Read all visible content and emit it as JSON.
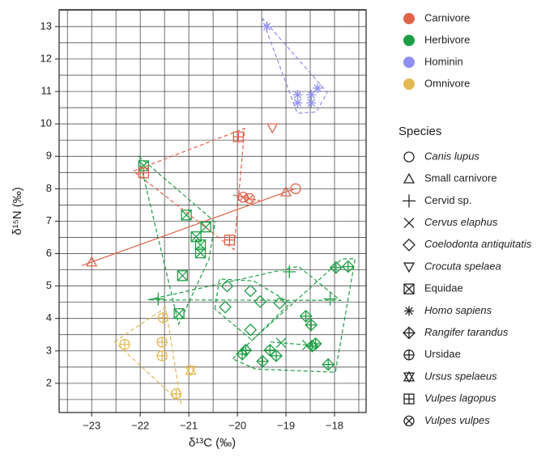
{
  "chart_data": {
    "type": "scatter",
    "x_label": "δ¹³C (‰)",
    "y_label": "δ¹⁵N (‰)",
    "xlim": [
      -23.67,
      -17.35
    ],
    "ylim": [
      1.1,
      13.52
    ],
    "xticks": [
      {
        "value": -23,
        "label": "−23"
      },
      {
        "value": -22,
        "label": "−22"
      },
      {
        "value": -21,
        "label": "−21"
      },
      {
        "value": -20,
        "label": "−20"
      },
      {
        "value": -19,
        "label": "−19"
      },
      {
        "value": -18,
        "label": "−18"
      }
    ],
    "yticks": [
      2,
      3,
      4,
      5,
      6,
      7,
      8,
      9,
      10,
      11,
      12,
      13
    ],
    "xgrid": [
      -23.5,
      -23,
      -22.5,
      -22,
      -21.5,
      -21,
      -20.5,
      -20,
      -19.5,
      -19,
      -18.5,
      -18,
      -17.5
    ],
    "ygrid": [
      1.5,
      2,
      2.5,
      3,
      3.5,
      4,
      4.5,
      5,
      5.5,
      6,
      6.5,
      7,
      7.5,
      8,
      8.5,
      9,
      9.5,
      10,
      10.5,
      11,
      11.5,
      12,
      12.5,
      13,
      13.5
    ],
    "diets": [
      {
        "name": "Carnivore",
        "color": "#e0634a"
      },
      {
        "name": "Herbivore",
        "color": "#1e9e44"
      },
      {
        "name": "Hominin",
        "color": "#8f8ff0"
      },
      {
        "name": "Omnivore",
        "color": "#e3b954"
      }
    ],
    "species_title": "Species",
    "series": [
      {
        "name": "Canis lupus",
        "italic": true,
        "marker": "circle",
        "diet": 0,
        "x": [
          -18.8
        ],
        "y": [
          8.0
        ]
      },
      {
        "name": "Small carnivore",
        "italic": false,
        "marker": "triangle",
        "diet": 0,
        "x": [
          -23.0,
          -19.0
        ],
        "y": [
          5.74,
          7.9
        ]
      },
      {
        "name": "Cervid sp.",
        "italic": false,
        "marker": "plus",
        "diet": 1,
        "x": [
          -21.63,
          -18.93,
          -18.09
        ],
        "y": [
          4.6,
          5.44,
          4.6
        ]
      },
      {
        "name": "Cervus elaphus",
        "italic": true,
        "marker": "x",
        "diet": 1,
        "x": [
          -19.1,
          -18.56
        ],
        "y": [
          3.25,
          3.18
        ]
      },
      {
        "name": "Coelodonta antiquitatis",
        "italic": true,
        "marker": "diamond",
        "diet": 1,
        "x": [
          -20.21,
          -19.73,
          -19.53,
          -20.25,
          -19.13,
          -19.73
        ],
        "y": [
          5.0,
          4.85,
          4.52,
          4.35,
          4.47,
          3.65
        ]
      },
      {
        "name": "Crocuta spelaea",
        "italic": true,
        "marker": "tri-down",
        "diet": 0,
        "x": [
          -19.28
        ],
        "y": [
          9.88
        ]
      },
      {
        "name": "Equidae",
        "italic": false,
        "marker": "square-x",
        "diet": 1,
        "x": [
          -21.93,
          -21.05,
          -20.65,
          -20.85,
          -20.76,
          -20.76,
          -21.13,
          -21.2
        ],
        "y": [
          8.71,
          7.19,
          6.82,
          6.52,
          6.27,
          6.02,
          5.32,
          4.15
        ]
      },
      {
        "name": "Homo sapiens",
        "italic": true,
        "marker": "asterisk",
        "diet": 2,
        "x": [
          -19.39,
          -18.76,
          -18.48,
          -18.76,
          -18.48,
          -18.35
        ],
        "y": [
          13.0,
          10.9,
          10.9,
          10.65,
          10.65,
          11.1
        ]
      },
      {
        "name": "Rangifer tarandus",
        "italic": true,
        "marker": "diamond-plus",
        "diet": 1,
        "x": [
          -17.72,
          -17.97,
          -18.59,
          -18.48,
          -18.39,
          -18.46,
          -19.83,
          -19.9,
          -19.33,
          -19.2,
          -19.48,
          -18.13
        ],
        "y": [
          5.6,
          5.57,
          4.07,
          3.8,
          3.22,
          3.15,
          3.02,
          2.9,
          3.02,
          2.85,
          2.68,
          2.58
        ]
      },
      {
        "name": "Ursidae",
        "italic": false,
        "marker": "circle-plus",
        "diet": 3,
        "x": [
          -22.32,
          -21.55,
          -21.55,
          -21.53,
          -21.26
        ],
        "y": [
          3.2,
          3.27,
          2.85,
          4.02,
          1.68
        ]
      },
      {
        "name": "Ursus spelaeus",
        "italic": true,
        "marker": "star6",
        "diet": 3,
        "x": [
          -20.96
        ],
        "y": [
          2.4
        ]
      },
      {
        "name": "Vulpes lagopus",
        "italic": true,
        "marker": "square-plus",
        "diet": 0,
        "x": [
          -21.93,
          -19.98,
          -20.16
        ],
        "y": [
          8.49,
          9.6,
          6.42
        ]
      },
      {
        "name": "Vulpes vulpes",
        "italic": true,
        "marker": "circle-x",
        "diet": 0,
        "x": [
          -19.88,
          -19.75
        ],
        "y": [
          7.74,
          7.7
        ]
      }
    ]
  }
}
